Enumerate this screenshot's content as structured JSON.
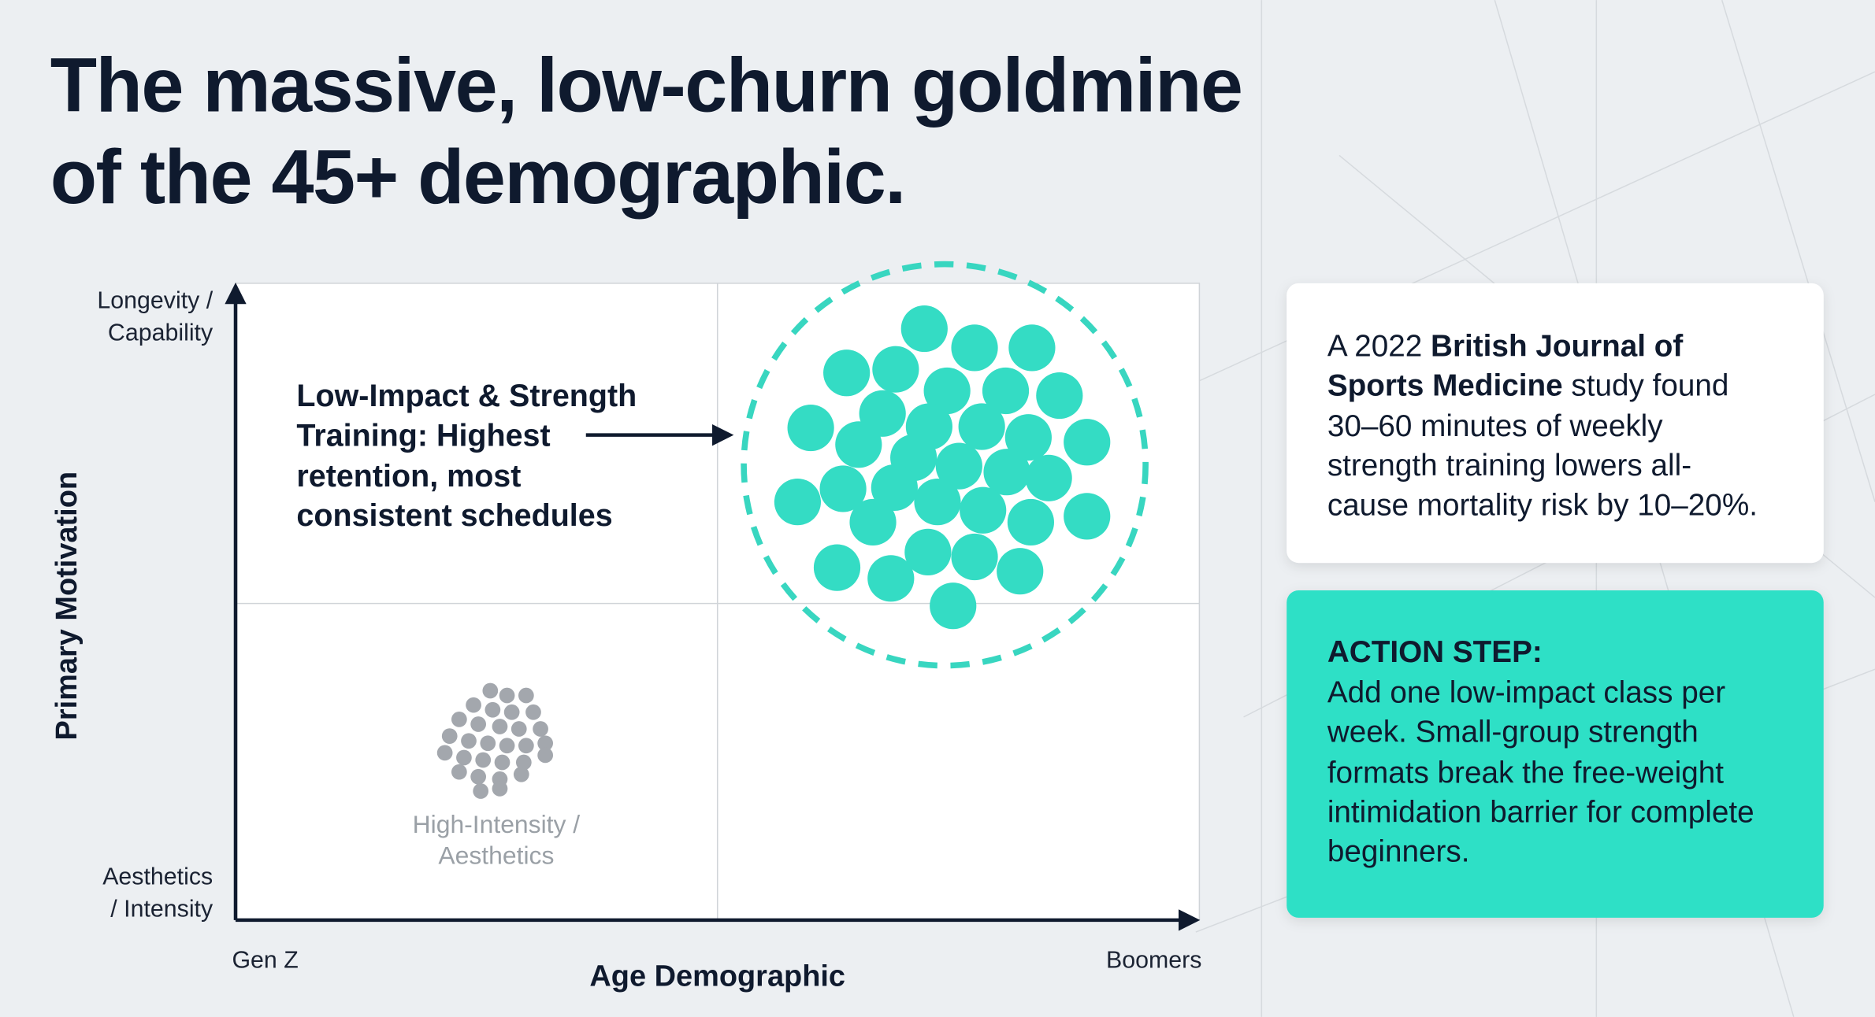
{
  "title": {
    "lines": [
      "The massive, low-churn goldmine",
      "of the 45+ demographic."
    ]
  },
  "y_axis": {
    "title": "Primary Motivation",
    "top_label": [
      "Longevity /",
      "Capability"
    ],
    "bottom_label": [
      "Aesthetics",
      "/ Intensity"
    ]
  },
  "x_axis": {
    "title": "Age Demographic",
    "left_label": "Gen Z",
    "right_label": "Boomers"
  },
  "callout": {
    "lines": [
      "Low-Impact & Strength",
      "Training: Highest",
      "retention, most",
      "consistent schedules"
    ]
  },
  "cluster_label": {
    "lines": [
      "High-Intensity /",
      "Aesthetics"
    ]
  },
  "study_card": {
    "lines": [
      [
        "A 2022 ",
        "British Journal of"
      ],
      [
        "Sports Medicine",
        " study found"
      ],
      [
        "30–60 minutes of weekly"
      ],
      [
        "strength training lowers all-"
      ],
      [
        "cause mortality risk by 10–20%."
      ]
    ]
  },
  "action_card": {
    "heading": "ACTION STEP:",
    "lines": [
      "Add one low-impact class per",
      "week. Small-group strength",
      "formats break the free-weight",
      "intimidation barrier for complete",
      "beginners."
    ]
  }
}
